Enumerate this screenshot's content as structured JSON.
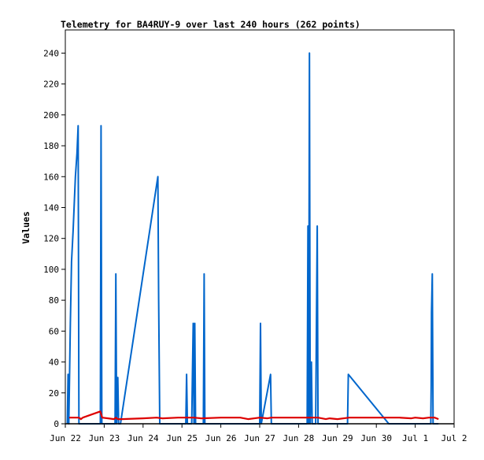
{
  "chart_data": {
    "type": "line",
    "title": "Telemetry for BA4RUY-9 over last 240 hours (262 points)",
    "xlabel": "",
    "ylabel": "Values",
    "x_ticks": [
      "Jun 22",
      "Jun 23",
      "Jun 24",
      "Jun 25",
      "Jun 26",
      "Jun 27",
      "Jun 28",
      "Jun 29",
      "Jun 30",
      "Jul 1",
      "Jul 2"
    ],
    "xlim": [
      0,
      10
    ],
    "y_ticks": [
      "0",
      "20",
      "40",
      "60",
      "80",
      "100",
      "120",
      "140",
      "160",
      "180",
      "200",
      "220",
      "240"
    ],
    "ylim": [
      0,
      255
    ],
    "grid": false,
    "legend": "none",
    "series": [
      {
        "color": "#0066cc",
        "points": [
          [
            0.05,
            0
          ],
          [
            0.07,
            32
          ],
          [
            0.09,
            0
          ],
          [
            0.11,
            32
          ],
          [
            0.13,
            65
          ],
          [
            0.16,
            105
          ],
          [
            0.2,
            125
          ],
          [
            0.26,
            160
          ],
          [
            0.3,
            175
          ],
          [
            0.33,
            193
          ],
          [
            0.35,
            0
          ],
          [
            0.38,
            0
          ],
          [
            0.6,
            0
          ],
          [
            0.9,
            0
          ],
          [
            0.92,
            193
          ],
          [
            0.94,
            0
          ],
          [
            1.15,
            0
          ],
          [
            1.28,
            0
          ],
          [
            1.3,
            97
          ],
          [
            1.32,
            0
          ],
          [
            1.35,
            30
          ],
          [
            1.37,
            0
          ],
          [
            1.42,
            0
          ],
          [
            2.38,
            160
          ],
          [
            2.4,
            80
          ],
          [
            2.43,
            0
          ],
          [
            2.5,
            0
          ],
          [
            3.1,
            0
          ],
          [
            3.12,
            32
          ],
          [
            3.14,
            0
          ],
          [
            3.25,
            0
          ],
          [
            3.27,
            32
          ],
          [
            3.29,
            65
          ],
          [
            3.31,
            0
          ],
          [
            3.33,
            65
          ],
          [
            3.35,
            0
          ],
          [
            3.55,
            0
          ],
          [
            3.57,
            97
          ],
          [
            3.59,
            0
          ],
          [
            4.2,
            0
          ],
          [
            5.0,
            0
          ],
          [
            5.02,
            65
          ],
          [
            5.04,
            0
          ],
          [
            5.28,
            32
          ],
          [
            5.3,
            0
          ],
          [
            5.6,
            0
          ],
          [
            6.22,
            0
          ],
          [
            6.24,
            128
          ],
          [
            6.26,
            0
          ],
          [
            6.28,
            240
          ],
          [
            6.3,
            0
          ],
          [
            6.33,
            40
          ],
          [
            6.35,
            0
          ],
          [
            6.44,
            0
          ],
          [
            6.46,
            65
          ],
          [
            6.48,
            128
          ],
          [
            6.5,
            0
          ],
          [
            6.8,
            0
          ],
          [
            7.26,
            0
          ],
          [
            7.28,
            32
          ],
          [
            8.32,
            0
          ],
          [
            8.5,
            0
          ],
          [
            9.4,
            0
          ],
          [
            9.41,
            25
          ],
          [
            9.42,
            72
          ],
          [
            9.44,
            97
          ],
          [
            9.46,
            0
          ],
          [
            9.6,
            0
          ]
        ]
      },
      {
        "color": "#dd0000",
        "points": [
          [
            0.1,
            4
          ],
          [
            0.35,
            4
          ],
          [
            0.4,
            3
          ],
          [
            0.45,
            4
          ],
          [
            0.9,
            8
          ],
          [
            0.95,
            4
          ],
          [
            1.1,
            3.5
          ],
          [
            1.25,
            3
          ],
          [
            1.3,
            4
          ],
          [
            1.35,
            3
          ],
          [
            1.45,
            3
          ],
          [
            2.0,
            3.5
          ],
          [
            2.35,
            4
          ],
          [
            2.5,
            3.5
          ],
          [
            2.9,
            4
          ],
          [
            3.3,
            4
          ],
          [
            3.5,
            3.5
          ],
          [
            4.0,
            4
          ],
          [
            4.5,
            4
          ],
          [
            4.7,
            3
          ],
          [
            5.0,
            4
          ],
          [
            5.2,
            3.5
          ],
          [
            5.3,
            4
          ],
          [
            6.0,
            4
          ],
          [
            6.5,
            4
          ],
          [
            6.7,
            3
          ],
          [
            6.8,
            3.5
          ],
          [
            7.0,
            3
          ],
          [
            7.3,
            4
          ],
          [
            8.0,
            4
          ],
          [
            8.3,
            4
          ],
          [
            8.6,
            4
          ],
          [
            8.9,
            3.5
          ],
          [
            9.0,
            4
          ],
          [
            9.2,
            3.5
          ],
          [
            9.35,
            4
          ],
          [
            9.5,
            4
          ],
          [
            9.6,
            3
          ]
        ]
      }
    ]
  }
}
